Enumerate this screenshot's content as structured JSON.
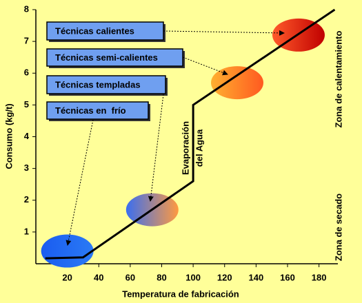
{
  "chart_data": {
    "type": "line",
    "x_label": "Temperatura de fabricación",
    "y_label": "Consumo (kg/t)",
    "xlim": [
      0,
      192
    ],
    "ylim": [
      0,
      8
    ],
    "xticks": [
      20,
      40,
      60,
      80,
      100,
      120,
      140,
      160,
      180
    ],
    "yticks": [
      1,
      2,
      3,
      4,
      5,
      6,
      7,
      8
    ],
    "series": [
      {
        "x": [
          6,
          30,
          100,
          100,
          190
        ],
        "values": [
          0.17,
          0.2,
          2.6,
          5,
          8
        ],
        "color": "#000000"
      }
    ],
    "techniques": [
      {
        "label": "Técnicas calientes",
        "x": 167,
        "y": 7.2,
        "colors": [
          "#ff5a2a",
          "#c00000"
        ]
      },
      {
        "label": "Técnicas semi-calientes",
        "x": 128,
        "y": 5.7,
        "colors": [
          "#ffb030",
          "#ff5a20"
        ]
      },
      {
        "label": "Técnicas templadas",
        "x": 74,
        "y": 1.7,
        "colors": [
          "#3a6ef0",
          "#ff9a40"
        ]
      },
      {
        "label": "Técnicas en  frío",
        "x": 20,
        "y": 0.4,
        "colors": [
          "#1a5cf0",
          "#2a7af5"
        ]
      }
    ],
    "annotations": [
      "Evaporación",
      "del Agua",
      "Zona de calentamiento",
      "Zona de secado"
    ]
  }
}
